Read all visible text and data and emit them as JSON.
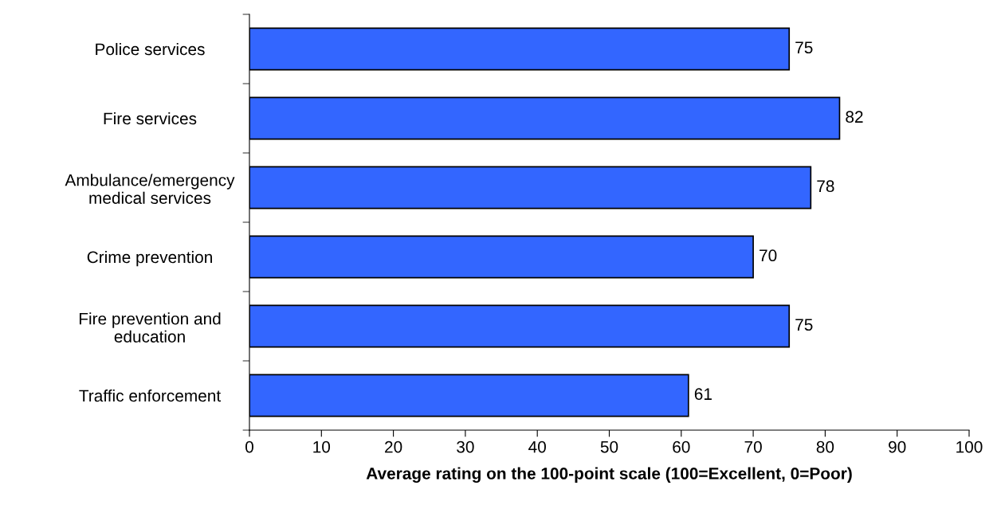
{
  "chart_data": {
    "type": "bar",
    "orientation": "horizontal",
    "categories": [
      "Police services",
      "Fire services",
      "Ambulance/emergency\nmedical services",
      "Crime prevention",
      "Fire prevention and\neducation",
      "Traffic enforcement"
    ],
    "values": [
      75,
      82,
      78,
      70,
      75,
      61
    ],
    "color": "#3366ff",
    "xlabel": "Average rating on the 100-point scale (100=Excellent, 0=Poor)",
    "xlim": [
      0,
      100
    ],
    "xticks": [
      0,
      10,
      20,
      30,
      40,
      50,
      60,
      70,
      80,
      90,
      100
    ],
    "data_labels": true,
    "grid": false,
    "legend": false
  }
}
